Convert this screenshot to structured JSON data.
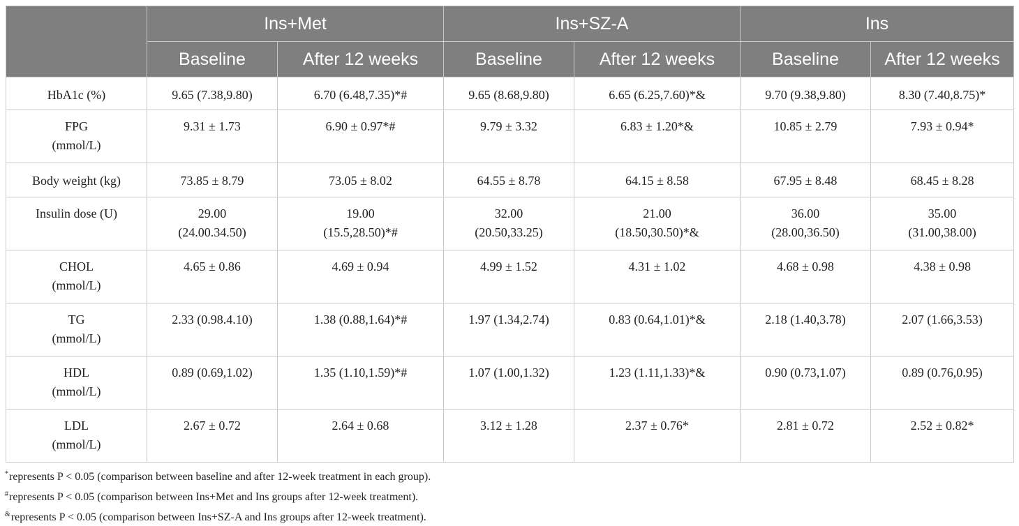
{
  "header": {
    "corner": "",
    "groups": [
      "Ins+Met",
      "Ins+SZ-A",
      "Ins"
    ],
    "subcols": [
      "Baseline",
      "After 12 weeks",
      "Baseline",
      "After 12 weeks",
      "Baseline",
      "After 12 weeks"
    ]
  },
  "rows": [
    {
      "label": [
        "HbA1c (%)"
      ],
      "cells": [
        [
          "9.65 (7.38,9.80)"
        ],
        [
          "6.70 (6.48,7.35)*#"
        ],
        [
          "9.65 (8.68,9.80)"
        ],
        [
          "6.65 (6.25,7.60)*&"
        ],
        [
          "9.70 (9.38,9.80)"
        ],
        [
          "8.30 (7.40,8.75)*"
        ]
      ]
    },
    {
      "label": [
        "FPG",
        "(mmol/L)"
      ],
      "cells": [
        [
          "9.31 ± 1.73"
        ],
        [
          "6.90 ± 0.97*#"
        ],
        [
          "9.79 ± 3.32"
        ],
        [
          "6.83 ± 1.20*&"
        ],
        [
          "10.85 ± 2.79"
        ],
        [
          "7.93 ± 0.94*"
        ]
      ]
    },
    {
      "label": [
        "Body weight (kg)"
      ],
      "cells": [
        [
          "73.85 ± 8.79"
        ],
        [
          "73.05 ± 8.02"
        ],
        [
          "64.55 ± 8.78"
        ],
        [
          "64.15 ± 8.58"
        ],
        [
          "67.95 ± 8.48"
        ],
        [
          "68.45 ± 8.28"
        ]
      ]
    },
    {
      "label": [
        "Insulin dose (U)"
      ],
      "cells": [
        [
          "29.00",
          "(24.00.34.50)"
        ],
        [
          "19.00",
          "(15.5,28.50)*#"
        ],
        [
          "32.00",
          "(20.50,33.25)"
        ],
        [
          "21.00",
          "(18.50,30.50)*&"
        ],
        [
          "36.00",
          "(28.00,36.50)"
        ],
        [
          "35.00",
          "(31.00,38.00)"
        ]
      ]
    },
    {
      "label": [
        "CHOL",
        "(mmol/L)"
      ],
      "cells": [
        [
          "4.65 ± 0.86"
        ],
        [
          "4.69 ± 0.94"
        ],
        [
          "4.99 ± 1.52"
        ],
        [
          "4.31 ± 1.02"
        ],
        [
          "4.68 ± 0.98"
        ],
        [
          "4.38 ± 0.98"
        ]
      ]
    },
    {
      "label": [
        "TG",
        "(mmol/L)"
      ],
      "cells": [
        [
          "2.33 (0.98.4.10)"
        ],
        [
          "1.38 (0.88,1.64)*#"
        ],
        [
          "1.97 (1.34,2.74)"
        ],
        [
          "0.83 (0.64,1.01)*&"
        ],
        [
          "2.18 (1.40,3.78)"
        ],
        [
          "2.07 (1.66,3.53)"
        ]
      ]
    },
    {
      "label": [
        "HDL",
        "(mmol/L)"
      ],
      "cells": [
        [
          "0.89 (0.69,1.02)"
        ],
        [
          "1.35 (1.10,1.59)*#"
        ],
        [
          "1.07 (1.00,1.32)"
        ],
        [
          "1.23 (1.11,1.33)*&"
        ],
        [
          "0.90 (0.73,1.07)"
        ],
        [
          "0.89 (0.76,0.95)"
        ]
      ]
    },
    {
      "label": [
        "LDL",
        "(mmol/L)"
      ],
      "cells": [
        [
          "2.67 ± 0.72"
        ],
        [
          "2.64 ± 0.68"
        ],
        [
          "3.12 ± 1.28"
        ],
        [
          "2.37 ± 0.76*"
        ],
        [
          "2.81 ± 0.72"
        ],
        [
          "2.52 ± 0.82*"
        ]
      ]
    }
  ],
  "footnotes": [
    {
      "mark": "*",
      "text": "represents P < 0.05 (comparison between baseline and after 12-week treatment in each group)."
    },
    {
      "mark": "#",
      "text": "represents P < 0.05 (comparison between Ins+Met and Ins groups after 12-week treatment)."
    },
    {
      "mark": "&",
      "text": "represents P < 0.05 (comparison between Ins+SZ-A and Ins groups after 12-week treatment)."
    }
  ]
}
